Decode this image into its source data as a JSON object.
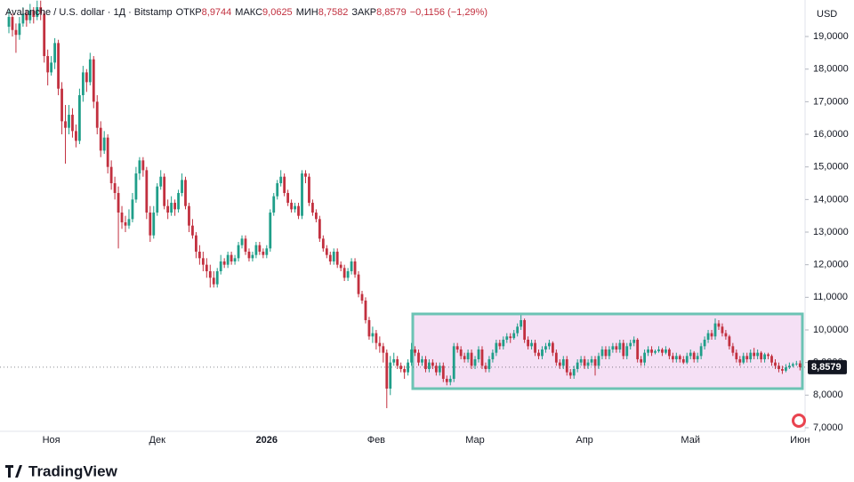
{
  "chart_data": {
    "type": "candlestick",
    "title": "Avalanche / U.S. dollar · 1Д · Bitstamp",
    "ohlc_legend": {
      "labels": [
        "ОТКР",
        "МАКС",
        "МИН",
        "ЗАКР"
      ],
      "values": [
        "8,9744",
        "9,0625",
        "8,7582",
        "8,8579"
      ]
    },
    "change": "−0,1156 (−1,29%)",
    "currency": "USD",
    "brand": "TradingView",
    "up_color": "#1f9e89",
    "down_color": "#c2303f",
    "ylim": [
      6.89,
      20.12
    ],
    "yticks": [
      {
        "value": 7,
        "label": "7,0000"
      },
      {
        "value": 8,
        "label": "8,0000"
      },
      {
        "value": 9,
        "label": "9,0000"
      },
      {
        "value": 10,
        "label": "10,0000"
      },
      {
        "value": 11,
        "label": "11,0000"
      },
      {
        "value": 12,
        "label": "12,0000"
      },
      {
        "value": 13,
        "label": "13,0000"
      },
      {
        "value": 14,
        "label": "14,0000"
      },
      {
        "value": 15,
        "label": "15,0000"
      },
      {
        "value": 16,
        "label": "16,0000"
      },
      {
        "value": 17,
        "label": "17,0000"
      },
      {
        "value": 18,
        "label": "18,0000"
      },
      {
        "value": 19,
        "label": "19,0000"
      }
    ],
    "last_price": {
      "value": 8.8579,
      "label": "8,8579"
    },
    "categories": [
      null,
      null,
      null,
      null,
      null,
      null,
      null,
      null,
      null,
      null,
      null,
      null,
      "Ноя",
      null,
      null,
      null,
      null,
      null,
      null,
      null,
      null,
      null,
      null,
      null,
      null,
      null,
      null,
      null,
      null,
      null,
      null,
      null,
      null,
      null,
      null,
      null,
      null,
      null,
      null,
      null,
      null,
      null,
      "Дек",
      null,
      null,
      null,
      null,
      null,
      null,
      null,
      null,
      null,
      null,
      null,
      null,
      null,
      null,
      null,
      null,
      null,
      null,
      null,
      null,
      null,
      null,
      null,
      null,
      null,
      null,
      null,
      null,
      null,
      null,
      "2026",
      null,
      null,
      null,
      null,
      null,
      null,
      null,
      null,
      null,
      null,
      null,
      null,
      null,
      null,
      null,
      null,
      null,
      null,
      null,
      null,
      null,
      null,
      null,
      null,
      null,
      null,
      null,
      null,
      null,
      null,
      "Фев",
      null,
      null,
      null,
      null,
      null,
      null,
      null,
      null,
      null,
      null,
      null,
      null,
      null,
      null,
      null,
      null,
      null,
      null,
      null,
      null,
      null,
      null,
      null,
      null,
      null,
      null,
      null,
      "Мар",
      null,
      null,
      null,
      null,
      null,
      null,
      null,
      null,
      null,
      null,
      null,
      null,
      null,
      null,
      null,
      null,
      null,
      null,
      null,
      null,
      null,
      null,
      null,
      null,
      null,
      null,
      null,
      null,
      null,
      null,
      "Апр",
      null,
      null,
      null,
      null,
      null,
      null,
      null,
      null,
      null,
      null,
      null,
      null,
      null,
      null,
      null,
      null,
      null,
      null,
      null,
      null,
      null,
      null,
      null,
      null,
      null,
      null,
      null,
      null,
      null,
      "Май",
      null,
      null,
      null,
      null,
      null,
      null,
      null,
      null,
      null,
      null,
      null,
      null,
      null,
      null,
      null,
      null,
      null,
      null,
      null,
      null,
      null,
      null,
      null,
      null,
      null,
      null,
      null,
      null,
      null,
      null,
      "Июн"
    ],
    "ohlc": [
      [
        19.3,
        19.8,
        19.1,
        19.6
      ],
      [
        19.6,
        19.7,
        19.0,
        19.2
      ],
      [
        19.2,
        19.4,
        18.5,
        19.05
      ],
      [
        19.05,
        19.6,
        18.9,
        19.4
      ],
      [
        19.4,
        19.9,
        19.3,
        19.7
      ],
      [
        19.7,
        19.8,
        19.3,
        19.5
      ],
      [
        19.5,
        20.0,
        19.4,
        19.8
      ],
      [
        19.8,
        19.9,
        19.4,
        19.6
      ],
      [
        19.6,
        20.1,
        19.5,
        19.9
      ],
      [
        19.9,
        20.1,
        19.5,
        19.7
      ],
      [
        19.7,
        19.8,
        18.2,
        18.4
      ],
      [
        18.4,
        18.6,
        17.5,
        17.9
      ],
      [
        17.9,
        18.4,
        17.8,
        18.2
      ],
      [
        18.2,
        18.95,
        18.0,
        18.8
      ],
      [
        18.8,
        18.9,
        17.2,
        17.4
      ],
      [
        17.4,
        17.6,
        16.0,
        16.4
      ],
      [
        16.4,
        16.9,
        15.1,
        16.2
      ],
      [
        16.2,
        16.9,
        16.0,
        16.6
      ],
      [
        16.6,
        16.8,
        15.9,
        16.1
      ],
      [
        16.1,
        16.3,
        15.6,
        15.8
      ],
      [
        15.8,
        17.4,
        15.7,
        17.2
      ],
      [
        17.2,
        18.1,
        17.0,
        17.9
      ],
      [
        17.9,
        18.0,
        17.3,
        17.6
      ],
      [
        17.6,
        18.5,
        17.5,
        18.3
      ],
      [
        18.3,
        18.4,
        16.8,
        17.0
      ],
      [
        17.0,
        17.2,
        16.0,
        16.2
      ],
      [
        16.2,
        16.4,
        15.3,
        15.5
      ],
      [
        15.5,
        16.1,
        15.4,
        15.9
      ],
      [
        15.9,
        16.0,
        14.8,
        15.0
      ],
      [
        15.0,
        15.2,
        14.3,
        14.5
      ],
      [
        14.5,
        14.7,
        14.0,
        14.2
      ],
      [
        14.2,
        14.4,
        12.5,
        13.6
      ],
      [
        13.6,
        13.8,
        13.1,
        13.3
      ],
      [
        13.3,
        13.5,
        13.0,
        13.2
      ],
      [
        13.2,
        13.7,
        13.1,
        13.4
      ],
      [
        13.4,
        14.2,
        13.3,
        14.0
      ],
      [
        14.0,
        15.0,
        13.9,
        14.8
      ],
      [
        14.8,
        15.3,
        14.6,
        15.2
      ],
      [
        15.2,
        15.3,
        14.7,
        14.9
      ],
      [
        14.9,
        15.0,
        13.4,
        13.6
      ],
      [
        13.6,
        13.8,
        12.7,
        12.9
      ],
      [
        12.9,
        13.8,
        12.8,
        13.6
      ],
      [
        13.6,
        14.5,
        13.5,
        14.4
      ],
      [
        14.4,
        14.9,
        14.3,
        14.7
      ],
      [
        14.7,
        14.8,
        13.7,
        13.8
      ],
      [
        13.8,
        14.0,
        13.4,
        13.6
      ],
      [
        13.6,
        14.1,
        13.5,
        13.9
      ],
      [
        13.9,
        14.0,
        13.5,
        13.7
      ],
      [
        13.7,
        14.3,
        13.6,
        14.2
      ],
      [
        14.2,
        14.8,
        14.1,
        14.6
      ],
      [
        14.6,
        14.7,
        13.7,
        13.8
      ],
      [
        13.8,
        13.9,
        13.0,
        13.2
      ],
      [
        13.2,
        13.4,
        12.8,
        12.9
      ],
      [
        12.9,
        13.0,
        12.2,
        12.4
      ],
      [
        12.4,
        12.6,
        12.0,
        12.2
      ],
      [
        12.2,
        12.4,
        11.8,
        12.0
      ],
      [
        12.0,
        12.2,
        11.6,
        11.8
      ],
      [
        11.8,
        12.0,
        11.3,
        11.6
      ],
      [
        11.6,
        11.8,
        11.3,
        11.4
      ],
      [
        11.4,
        11.9,
        11.3,
        11.8
      ],
      [
        11.8,
        12.3,
        11.7,
        12.1
      ],
      [
        12.1,
        12.2,
        11.9,
        12.0
      ],
      [
        12.0,
        12.4,
        11.9,
        12.3
      ],
      [
        12.3,
        12.4,
        12.0,
        12.1
      ],
      [
        12.1,
        12.3,
        12.0,
        12.2
      ],
      [
        12.2,
        12.7,
        12.1,
        12.6
      ],
      [
        12.6,
        12.9,
        12.5,
        12.8
      ],
      [
        12.8,
        12.9,
        12.3,
        12.4
      ],
      [
        12.4,
        12.5,
        12.1,
        12.2
      ],
      [
        12.2,
        12.4,
        12.1,
        12.3
      ],
      [
        12.3,
        12.7,
        12.2,
        12.6
      ],
      [
        12.6,
        12.7,
        12.3,
        12.4
      ],
      [
        12.4,
        12.5,
        12.2,
        12.3
      ],
      [
        12.3,
        12.6,
        12.2,
        12.5
      ],
      [
        12.5,
        13.7,
        12.4,
        13.6
      ],
      [
        13.6,
        14.2,
        13.5,
        14.1
      ],
      [
        14.1,
        14.6,
        14.0,
        14.5
      ],
      [
        14.5,
        14.9,
        14.4,
        14.7
      ],
      [
        14.7,
        14.8,
        14.1,
        14.2
      ],
      [
        14.2,
        14.3,
        13.8,
        13.9
      ],
      [
        13.9,
        14.0,
        13.6,
        13.7
      ],
      [
        13.7,
        13.9,
        13.6,
        13.8
      ],
      [
        13.8,
        13.9,
        13.4,
        13.5
      ],
      [
        13.5,
        14.9,
        13.4,
        14.8
      ],
      [
        14.8,
        14.9,
        14.5,
        14.7
      ],
      [
        14.7,
        14.8,
        13.8,
        13.9
      ],
      [
        13.9,
        14.0,
        13.5,
        13.6
      ],
      [
        13.6,
        13.7,
        13.3,
        13.4
      ],
      [
        13.4,
        13.5,
        12.7,
        12.8
      ],
      [
        12.8,
        12.9,
        12.4,
        12.5
      ],
      [
        12.5,
        12.6,
        12.2,
        12.3
      ],
      [
        12.3,
        12.4,
        12.0,
        12.1
      ],
      [
        12.1,
        12.5,
        12.0,
        12.4
      ],
      [
        12.4,
        12.5,
        11.9,
        12.0
      ],
      [
        12.0,
        12.1,
        11.8,
        11.9
      ],
      [
        11.9,
        12.0,
        11.5,
        11.6
      ],
      [
        11.6,
        11.9,
        11.5,
        11.8
      ],
      [
        11.8,
        12.2,
        11.7,
        12.1
      ],
      [
        12.1,
        12.2,
        11.6,
        11.7
      ],
      [
        11.7,
        11.8,
        11.0,
        11.1
      ],
      [
        11.1,
        11.2,
        10.8,
        10.9
      ],
      [
        10.9,
        11.0,
        10.2,
        10.3
      ],
      [
        10.3,
        10.4,
        9.7,
        9.8
      ],
      [
        9.8,
        10.1,
        9.6,
        9.9
      ],
      [
        9.9,
        10.0,
        9.4,
        9.6
      ],
      [
        9.6,
        9.8,
        9.3,
        9.5
      ],
      [
        9.5,
        9.6,
        9.0,
        9.3
      ],
      [
        9.3,
        9.4,
        7.6,
        8.2
      ],
      [
        8.2,
        9.2,
        8.0,
        9.0
      ],
      [
        9.0,
        9.3,
        8.9,
        9.1
      ],
      [
        9.1,
        9.2,
        8.8,
        8.9
      ],
      [
        8.9,
        9.0,
        8.7,
        8.8
      ],
      [
        8.8,
        8.9,
        8.5,
        8.7
      ],
      [
        8.7,
        9.1,
        8.6,
        9.0
      ],
      [
        9.0,
        9.6,
        8.9,
        9.4
      ],
      [
        9.4,
        9.5,
        9.2,
        9.3
      ],
      [
        9.3,
        9.4,
        8.9,
        9.0
      ],
      [
        9.0,
        9.2,
        8.9,
        9.1
      ],
      [
        9.1,
        9.2,
        8.7,
        8.8
      ],
      [
        8.8,
        9.1,
        8.7,
        9.0
      ],
      [
        9.0,
        9.1,
        8.8,
        8.9
      ],
      [
        8.9,
        9.0,
        8.6,
        8.7
      ],
      [
        8.7,
        9.0,
        8.6,
        8.9
      ],
      [
        8.9,
        9.0,
        8.4,
        8.5
      ],
      [
        8.5,
        8.6,
        8.3,
        8.4
      ],
      [
        8.4,
        8.6,
        8.3,
        8.5
      ],
      [
        8.5,
        9.6,
        8.4,
        9.5
      ],
      [
        9.5,
        9.6,
        9.3,
        9.4
      ],
      [
        9.4,
        9.5,
        9.1,
        9.2
      ],
      [
        9.2,
        9.3,
        9.0,
        9.1
      ],
      [
        9.1,
        9.4,
        9.0,
        9.3
      ],
      [
        9.3,
        9.4,
        8.8,
        8.9
      ],
      [
        8.9,
        9.2,
        8.8,
        9.1
      ],
      [
        9.1,
        9.5,
        9.0,
        9.4
      ],
      [
        9.4,
        9.5,
        8.8,
        8.9
      ],
      [
        8.9,
        9.0,
        8.7,
        8.8
      ],
      [
        8.8,
        9.2,
        8.7,
        9.1
      ],
      [
        9.1,
        9.4,
        9.0,
        9.3
      ],
      [
        9.3,
        9.7,
        9.2,
        9.6
      ],
      [
        9.6,
        9.7,
        9.4,
        9.5
      ],
      [
        9.5,
        9.8,
        9.4,
        9.7
      ],
      [
        9.7,
        9.9,
        9.6,
        9.8
      ],
      [
        9.8,
        9.9,
        9.6,
        9.75
      ],
      [
        9.75,
        10.0,
        9.7,
        9.9
      ],
      [
        9.9,
        10.2,
        9.8,
        10.1
      ],
      [
        10.1,
        10.45,
        10.0,
        10.3
      ],
      [
        10.3,
        10.35,
        9.6,
        9.7
      ],
      [
        9.7,
        9.8,
        9.4,
        9.5
      ],
      [
        9.5,
        9.7,
        9.4,
        9.6
      ],
      [
        9.6,
        9.7,
        9.2,
        9.3
      ],
      [
        9.3,
        9.4,
        9.1,
        9.2
      ],
      [
        9.2,
        9.5,
        9.1,
        9.4
      ],
      [
        9.4,
        9.6,
        9.3,
        9.5
      ],
      [
        9.5,
        9.7,
        9.4,
        9.6
      ],
      [
        9.6,
        9.65,
        9.2,
        9.3
      ],
      [
        9.3,
        9.4,
        8.9,
        9.0
      ],
      [
        9.0,
        9.1,
        8.8,
        8.9
      ],
      [
        8.9,
        9.2,
        8.8,
        9.1
      ],
      [
        9.1,
        9.2,
        8.6,
        8.7
      ],
      [
        8.7,
        8.8,
        8.5,
        8.6
      ],
      [
        8.6,
        8.9,
        8.5,
        8.8
      ],
      [
        8.8,
        9.1,
        8.7,
        9.0
      ],
      [
        9.0,
        9.2,
        8.9,
        9.1
      ],
      [
        9.1,
        9.2,
        8.8,
        8.9
      ],
      [
        8.9,
        9.1,
        8.8,
        9.0
      ],
      [
        9.0,
        9.2,
        8.9,
        9.1
      ],
      [
        9.1,
        9.2,
        8.6,
        8.9
      ],
      [
        8.9,
        9.3,
        8.8,
        9.2
      ],
      [
        9.2,
        9.5,
        9.1,
        9.4
      ],
      [
        9.4,
        9.5,
        9.1,
        9.2
      ],
      [
        9.2,
        9.5,
        9.1,
        9.4
      ],
      [
        9.4,
        9.6,
        9.3,
        9.5
      ],
      [
        9.5,
        9.6,
        9.3,
        9.4
      ],
      [
        9.4,
        9.7,
        9.3,
        9.6
      ],
      [
        9.6,
        9.7,
        9.1,
        9.2
      ],
      [
        9.2,
        9.6,
        9.1,
        9.5
      ],
      [
        9.5,
        9.7,
        9.4,
        9.6
      ],
      [
        9.6,
        9.8,
        9.5,
        9.7
      ],
      [
        9.7,
        9.75,
        9.0,
        9.1
      ],
      [
        9.1,
        9.2,
        8.9,
        9.0
      ],
      [
        9.0,
        9.4,
        8.9,
        9.3
      ],
      [
        9.3,
        9.5,
        9.2,
        9.4
      ],
      [
        9.4,
        9.5,
        9.2,
        9.3
      ],
      [
        9.3,
        9.4,
        9.25,
        9.35
      ],
      [
        9.35,
        9.5,
        9.3,
        9.4
      ],
      [
        9.4,
        9.45,
        9.2,
        9.3
      ],
      [
        9.3,
        9.5,
        9.25,
        9.4
      ],
      [
        9.4,
        9.45,
        9.1,
        9.2
      ],
      [
        9.2,
        9.3,
        9.0,
        9.1
      ],
      [
        9.1,
        9.3,
        9.0,
        9.2
      ],
      [
        9.2,
        9.25,
        9.0,
        9.1
      ],
      [
        9.1,
        9.2,
        8.95,
        9.0
      ],
      [
        9.0,
        9.3,
        8.95,
        9.2
      ],
      [
        9.2,
        9.4,
        9.1,
        9.3
      ],
      [
        9.3,
        9.35,
        9.0,
        9.1
      ],
      [
        9.1,
        9.3,
        9.0,
        9.2
      ],
      [
        9.2,
        9.6,
        9.1,
        9.5
      ],
      [
        9.5,
        9.8,
        9.4,
        9.7
      ],
      [
        9.7,
        10.0,
        9.6,
        9.9
      ],
      [
        9.9,
        10.0,
        9.7,
        9.8
      ],
      [
        9.8,
        10.35,
        9.7,
        10.2
      ],
      [
        10.2,
        10.3,
        10.0,
        10.1
      ],
      [
        10.1,
        10.2,
        9.8,
        9.9
      ],
      [
        9.9,
        10.0,
        9.7,
        9.8
      ],
      [
        9.8,
        9.85,
        9.4,
        9.5
      ],
      [
        9.5,
        9.6,
        9.2,
        9.3
      ],
      [
        9.3,
        9.4,
        9.0,
        9.1
      ],
      [
        9.1,
        9.2,
        8.9,
        9.0
      ],
      [
        9.0,
        9.3,
        8.95,
        9.2
      ],
      [
        9.2,
        9.3,
        9.0,
        9.1
      ],
      [
        9.1,
        9.4,
        9.0,
        9.3
      ],
      [
        9.3,
        9.45,
        9.1,
        9.2
      ],
      [
        9.2,
        9.4,
        9.1,
        9.3
      ],
      [
        9.3,
        9.35,
        9.0,
        9.1
      ],
      [
        9.1,
        9.3,
        9.0,
        9.25
      ],
      [
        9.25,
        9.3,
        9.1,
        9.2
      ],
      [
        9.2,
        9.25,
        8.9,
        9.0
      ],
      [
        9.0,
        9.1,
        8.8,
        8.9
      ],
      [
        8.9,
        9.0,
        8.7,
        8.8
      ],
      [
        8.8,
        8.9,
        8.65,
        8.75
      ],
      [
        8.75,
        8.95,
        8.7,
        8.85
      ],
      [
        8.85,
        9.0,
        8.8,
        8.9
      ],
      [
        8.9,
        9.0,
        8.85,
        8.95
      ],
      [
        8.95,
        9.05,
        8.9,
        8.97
      ],
      [
        8.9744,
        9.0625,
        8.7582,
        8.8579
      ]
    ]
  }
}
